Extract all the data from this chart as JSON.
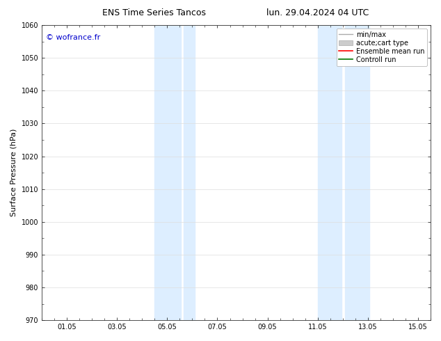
{
  "title_left": "ENS Time Series Tancos",
  "title_right": "lun. 29.04.2024 04 UTC",
  "ylabel": "Surface Pressure (hPa)",
  "ylim": [
    970,
    1060
  ],
  "yticks": [
    970,
    980,
    990,
    1000,
    1010,
    1020,
    1030,
    1040,
    1050,
    1060
  ],
  "xlim": [
    0,
    15.5
  ],
  "xticks": [
    1,
    3,
    5,
    7,
    9,
    11,
    13,
    15
  ],
  "xticklabels": [
    "01.05",
    "03.05",
    "05.05",
    "07.05",
    "09.05",
    "11.05",
    "13.05",
    "15.05"
  ],
  "watermark": "© wofrance.fr",
  "watermark_color": "#0000cc",
  "shaded_bands": [
    {
      "xmin": 4.5,
      "xmax": 5.5
    },
    {
      "xmin": 5.6,
      "xmax": 6.1
    },
    {
      "xmin": 11.0,
      "xmax": 12.0
    },
    {
      "xmin": 12.1,
      "xmax": 13.0
    }
  ],
  "shade_color": "#ddeeff",
  "background_color": "#ffffff",
  "grid_color": "#dddddd",
  "title_fontsize": 9,
  "tick_fontsize": 7,
  "ylabel_fontsize": 8,
  "watermark_fontsize": 8,
  "legend_fontsize": 7
}
